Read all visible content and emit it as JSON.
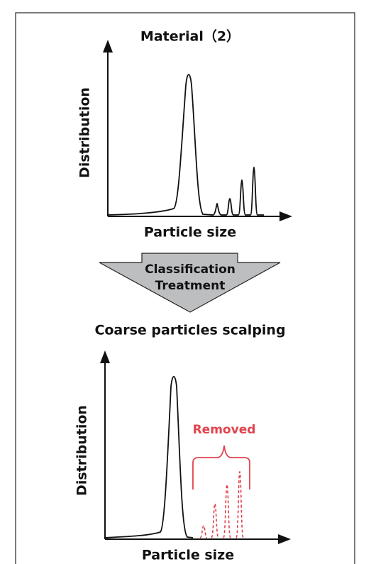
{
  "top_chart": {
    "title": "Material（2）",
    "y_label": "Distribution",
    "x_label": "Particle size"
  },
  "arrow": {
    "lines": [
      "Classification",
      "Treatment"
    ]
  },
  "caption": "Coarse particles scalping",
  "bottom_chart": {
    "y_label": "Distribution",
    "x_label": "Particle size",
    "annotation": "Removed"
  }
}
